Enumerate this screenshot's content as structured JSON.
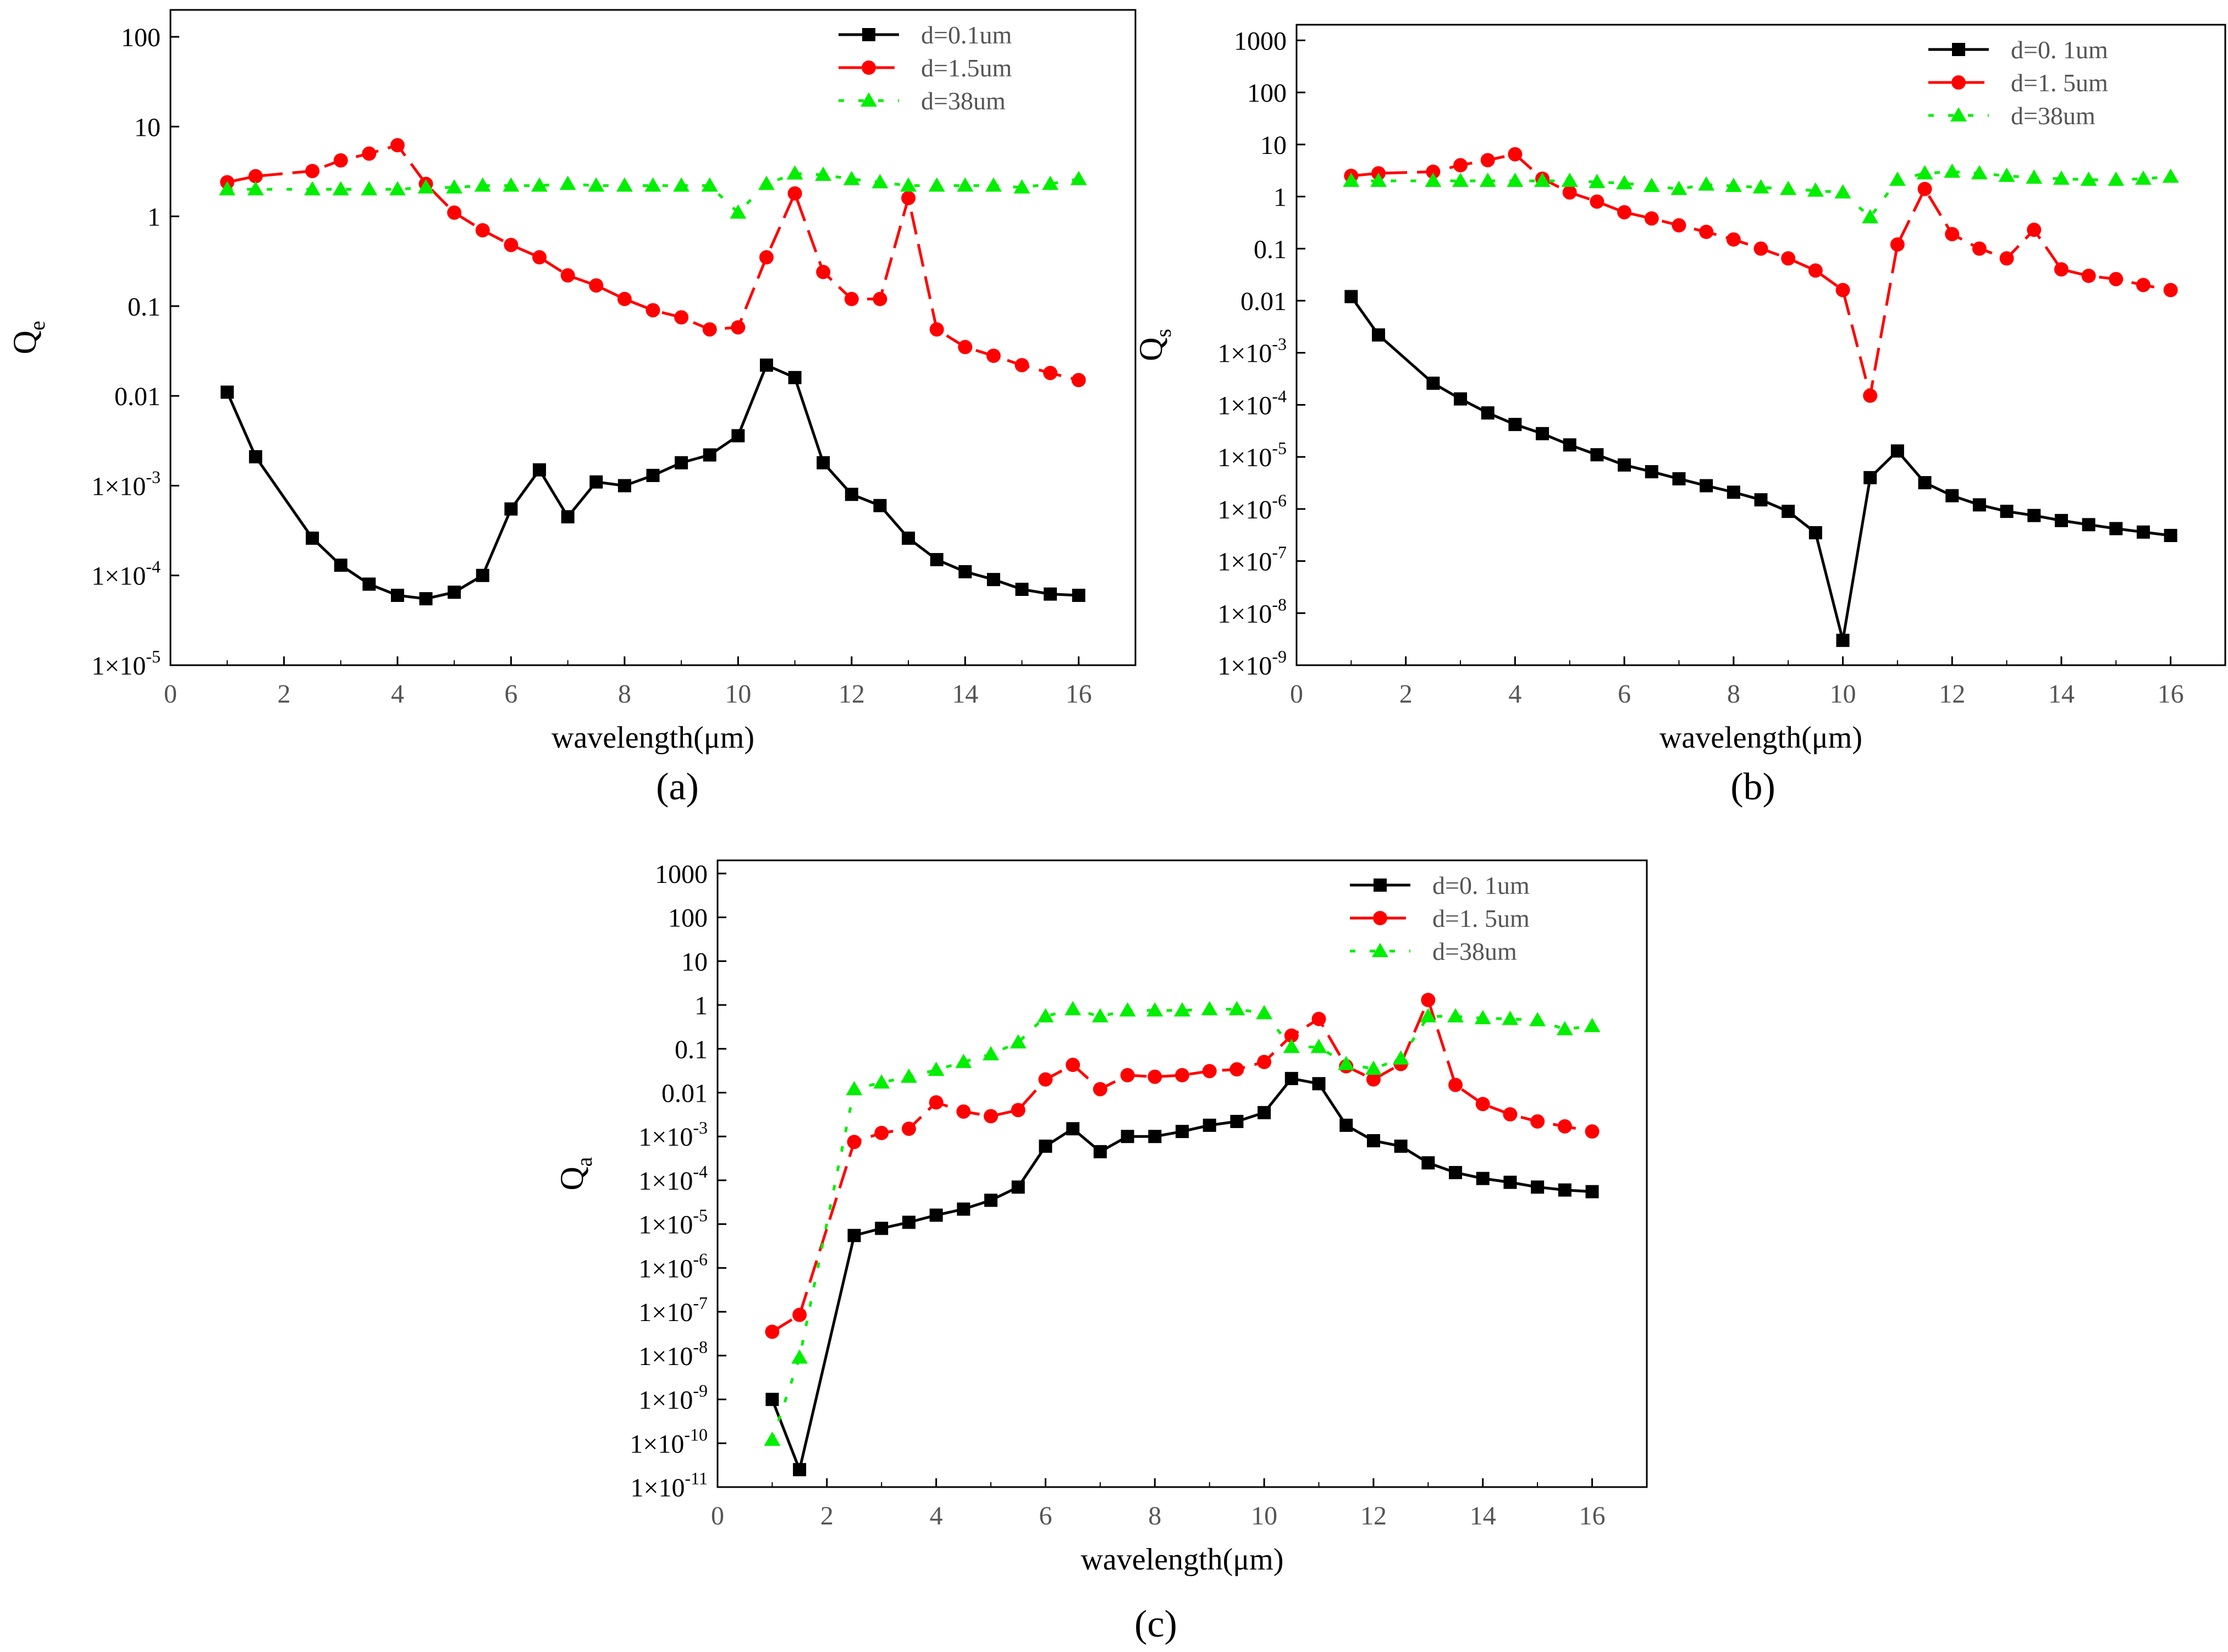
{
  "figure": {
    "captions": [
      "(a)",
      "(b)",
      "(c)"
    ]
  },
  "colors": {
    "axis": "#000000",
    "series": [
      "#000000",
      "#ff0000",
      "#00ee00"
    ]
  },
  "chart_data": [
    {
      "id": "a",
      "type": "line",
      "yscale": "log",
      "xlabel": "wavelength(μm)",
      "ylabel": "Q",
      "ylabel_sub": "e",
      "xlim": [
        0,
        17
      ],
      "ylim_exp": [
        -5,
        2.3
      ],
      "xticks": [
        "0",
        "2",
        "4",
        "6",
        "8",
        "10",
        "12",
        "14",
        "16"
      ],
      "yticks": [
        {
          "exp": 2,
          "label": "100"
        },
        {
          "exp": 1,
          "label": "10"
        },
        {
          "exp": 0,
          "label": "1"
        },
        {
          "exp": -1,
          "label": "0.1"
        },
        {
          "exp": -2,
          "label": "0.01"
        },
        {
          "exp": -3,
          "label": "1×10",
          "sup": "-3"
        },
        {
          "exp": -4,
          "label": "1×10",
          "sup": "-4"
        },
        {
          "exp": -5,
          "label": "1×10",
          "sup": "-5"
        }
      ],
      "legend": [
        "d=0.1um",
        "d=1.5um",
        "d=38um"
      ],
      "series": [
        {
          "name": "d=0.1um",
          "marker": "square",
          "x": [
            1,
            1.5,
            2.5,
            3,
            3.5,
            4,
            4.5,
            5,
            5.5,
            6,
            6.5,
            7,
            7.5,
            8,
            8.5,
            9,
            9.5,
            10,
            10.5,
            11,
            11.5,
            12,
            12.5,
            13,
            13.5,
            14,
            14.5,
            15,
            15.5,
            16
          ],
          "y": [
            0.011,
            0.0021,
            0.00026,
            0.00013,
            8e-05,
            6e-05,
            5.5e-05,
            6.5e-05,
            0.0001,
            0.00055,
            0.0015,
            0.00045,
            0.0011,
            0.001,
            0.0013,
            0.0018,
            0.0022,
            0.0036,
            0.022,
            0.016,
            0.0018,
            0.0008,
            0.0006,
            0.00026,
            0.00015,
            0.00011,
            9e-05,
            7e-05,
            6.2e-05,
            6e-05
          ]
        },
        {
          "name": "d=1.5um",
          "marker": "circle",
          "x": [
            1,
            1.5,
            2.5,
            3,
            3.5,
            4,
            4.5,
            5,
            5.5,
            6,
            6.5,
            7,
            7.5,
            8,
            8.5,
            9,
            9.5,
            10,
            10.5,
            11,
            11.5,
            12,
            12.5,
            13,
            13.5,
            14,
            14.5,
            15,
            15.5,
            16
          ],
          "y": [
            2.4,
            2.8,
            3.2,
            4.2,
            5,
            6.2,
            2.3,
            1.1,
            0.7,
            0.48,
            0.35,
            0.22,
            0.17,
            0.12,
            0.09,
            0.075,
            0.055,
            0.058,
            0.35,
            1.8,
            0.24,
            0.12,
            0.12,
            1.6,
            0.055,
            0.035,
            0.028,
            0.022,
            0.018,
            0.015
          ]
        },
        {
          "name": "d=38um",
          "marker": "triangle",
          "x": [
            1,
            1.5,
            2.5,
            3,
            3.5,
            4,
            4.5,
            5,
            5.5,
            6,
            6.5,
            7,
            7.5,
            8,
            8.5,
            9,
            9.5,
            10,
            10.5,
            11,
            11.5,
            12,
            12.5,
            13,
            13.5,
            14,
            14.5,
            15,
            15.5,
            16
          ],
          "y": [
            2,
            2,
            2,
            2,
            2,
            2,
            2.1,
            2.1,
            2.2,
            2.2,
            2.2,
            2.3,
            2.2,
            2.2,
            2.2,
            2.2,
            2.2,
            1.1,
            2.3,
            3,
            2.9,
            2.6,
            2.4,
            2.2,
            2.2,
            2.2,
            2.2,
            2.1,
            2.3,
            2.6
          ]
        }
      ]
    },
    {
      "id": "b",
      "type": "line",
      "yscale": "log",
      "xlabel": "wavelength(μm)",
      "ylabel": "Q",
      "ylabel_sub": "s",
      "xlim": [
        0,
        17
      ],
      "ylim_exp": [
        -9,
        3.3
      ],
      "xticks": [
        "0",
        "2",
        "4",
        "6",
        "8",
        "10",
        "12",
        "14",
        "16"
      ],
      "yticks": [
        {
          "exp": 3,
          "label": "1000"
        },
        {
          "exp": 2,
          "label": "100"
        },
        {
          "exp": 1,
          "label": "10"
        },
        {
          "exp": 0,
          "label": "1"
        },
        {
          "exp": -1,
          "label": "0.1"
        },
        {
          "exp": -2,
          "label": "0.01"
        },
        {
          "exp": -3,
          "label": "1×10",
          "sup": "-3"
        },
        {
          "exp": -4,
          "label": "1×10",
          "sup": "-4"
        },
        {
          "exp": -5,
          "label": "1×10",
          "sup": "-5"
        },
        {
          "exp": -6,
          "label": "1×10",
          "sup": "-6"
        },
        {
          "exp": -7,
          "label": "1×10",
          "sup": "-7"
        },
        {
          "exp": -8,
          "label": "1×10",
          "sup": "-8"
        },
        {
          "exp": -9,
          "label": "1×10",
          "sup": "-9"
        }
      ],
      "legend": [
        "d=0. 1um",
        "d=1. 5um",
        "d=38um"
      ],
      "series": [
        {
          "name": "d=0. 1um",
          "marker": "square",
          "x": [
            1,
            1.5,
            2.5,
            3,
            3.5,
            4,
            4.5,
            5,
            5.5,
            6,
            6.5,
            7,
            7.5,
            8,
            8.5,
            9,
            9.5,
            10,
            10.5,
            11,
            11.5,
            12,
            12.5,
            13,
            13.5,
            14,
            14.5,
            15,
            15.5,
            16
          ],
          "y": [
            0.012,
            0.0022,
            0.00026,
            0.00013,
            7e-05,
            4.2e-05,
            2.8e-05,
            1.7e-05,
            1.1e-05,
            7e-06,
            5.2e-06,
            3.8e-06,
            2.8e-06,
            2.1e-06,
            1.5e-06,
            9e-07,
            3.5e-07,
            3e-09,
            4e-06,
            1.3e-05,
            3.2e-06,
            1.8e-06,
            1.2e-06,
            9e-07,
            7.5e-07,
            6e-07,
            5e-07,
            4.2e-07,
            3.6e-07,
            3.1e-07
          ]
        },
        {
          "name": "d=1. 5um",
          "marker": "circle",
          "x": [
            1,
            1.5,
            2.5,
            3,
            3.5,
            4,
            4.5,
            5,
            5.5,
            6,
            6.5,
            7,
            7.5,
            8,
            8.5,
            9,
            9.5,
            10,
            10.5,
            11,
            11.5,
            12,
            12.5,
            13,
            13.5,
            14,
            14.5,
            15,
            15.5,
            16
          ],
          "y": [
            2.5,
            2.8,
            3,
            4,
            5,
            6.5,
            2.2,
            1.2,
            0.8,
            0.5,
            0.38,
            0.28,
            0.21,
            0.15,
            0.1,
            0.065,
            0.038,
            0.016,
            0.00015,
            0.12,
            1.4,
            0.19,
            0.1,
            0.065,
            0.23,
            0.04,
            0.03,
            0.026,
            0.02,
            0.016
          ]
        },
        {
          "name": "d=38um",
          "marker": "triangle",
          "x": [
            1,
            1.5,
            2.5,
            3,
            3.5,
            4,
            4.5,
            5,
            5.5,
            6,
            6.5,
            7,
            7.5,
            8,
            8.5,
            9,
            9.5,
            10,
            10.5,
            11,
            11.5,
            12,
            12.5,
            13,
            13.5,
            14,
            14.5,
            15,
            15.5,
            16
          ],
          "y": [
            2,
            2,
            2,
            2,
            2,
            2,
            2,
            2,
            1.9,
            1.8,
            1.6,
            1.4,
            1.7,
            1.6,
            1.5,
            1.4,
            1.3,
            1.2,
            0.4,
            2.1,
            2.8,
            3,
            2.8,
            2.5,
            2.3,
            2.2,
            2.1,
            2.1,
            2.2,
            2.4
          ]
        }
      ]
    },
    {
      "id": "c",
      "type": "line",
      "yscale": "log",
      "xlabel": "wavelength(μm)",
      "ylabel": "Q",
      "ylabel_sub": "a",
      "xlim": [
        0,
        17
      ],
      "ylim_exp": [
        -11,
        3.3
      ],
      "xticks": [
        "0",
        "2",
        "4",
        "6",
        "8",
        "10",
        "12",
        "14",
        "16"
      ],
      "yticks": [
        {
          "exp": 3,
          "label": "1000"
        },
        {
          "exp": 2,
          "label": "100"
        },
        {
          "exp": 1,
          "label": "10"
        },
        {
          "exp": 0,
          "label": "1"
        },
        {
          "exp": -1,
          "label": "0.1"
        },
        {
          "exp": -2,
          "label": "0.01"
        },
        {
          "exp": -3,
          "label": "1×10",
          "sup": "-3"
        },
        {
          "exp": -4,
          "label": "1×10",
          "sup": "-4"
        },
        {
          "exp": -5,
          "label": "1×10",
          "sup": "-5"
        },
        {
          "exp": -6,
          "label": "1×10",
          "sup": "-6"
        },
        {
          "exp": -7,
          "label": "1×10",
          "sup": "-7"
        },
        {
          "exp": -8,
          "label": "1×10",
          "sup": "-8"
        },
        {
          "exp": -9,
          "label": "1×10",
          "sup": "-9"
        },
        {
          "exp": -10,
          "label": "1×10",
          "sup": "-10"
        },
        {
          "exp": -11,
          "label": "1×10",
          "sup": "-11"
        }
      ],
      "legend": [
        "d=0. 1um",
        "d=1. 5um",
        "d=38um"
      ],
      "series": [
        {
          "name": "d=0. 1um",
          "marker": "square",
          "x": [
            1,
            1.5,
            2.5,
            3,
            3.5,
            4,
            4.5,
            5,
            5.5,
            6,
            6.5,
            7,
            7.5,
            8,
            8.5,
            9,
            9.5,
            10,
            10.5,
            11,
            11.5,
            12,
            12.5,
            13,
            13.5,
            14,
            14.5,
            15,
            15.5,
            16
          ],
          "y": [
            1e-09,
            2.5e-11,
            5.5e-06,
            8e-06,
            1.1e-05,
            1.6e-05,
            2.2e-05,
            3.5e-05,
            7e-05,
            0.0006,
            0.0015,
            0.00045,
            0.001,
            0.001,
            0.0013,
            0.0018,
            0.0022,
            0.0035,
            0.021,
            0.016,
            0.0018,
            0.0008,
            0.0006,
            0.00025,
            0.00015,
            0.00011,
            9e-05,
            7e-05,
            6e-05,
            5.5e-05
          ]
        },
        {
          "name": "d=1. 5um",
          "marker": "circle",
          "x": [
            1,
            1.5,
            2.5,
            3,
            3.5,
            4,
            4.5,
            5,
            5.5,
            6,
            6.5,
            7,
            7.5,
            8,
            8.5,
            9,
            9.5,
            10,
            10.5,
            11,
            11.5,
            12,
            12.5,
            13,
            13.5,
            14,
            14.5,
            15,
            15.5,
            16
          ],
          "y": [
            3.5e-08,
            8.5e-08,
            0.00075,
            0.0012,
            0.0015,
            0.006,
            0.0037,
            0.0029,
            0.004,
            0.02,
            0.043,
            0.012,
            0.025,
            0.023,
            0.025,
            0.031,
            0.034,
            0.05,
            0.2,
            0.48,
            0.04,
            0.02,
            0.045,
            1.3,
            0.015,
            0.0055,
            0.0032,
            0.0022,
            0.0017,
            0.0013
          ]
        },
        {
          "name": "d=38um",
          "marker": "triangle",
          "x": [
            1,
            1.5,
            2.5,
            3,
            3.5,
            4,
            4.5,
            5,
            5.5,
            6,
            6.5,
            7,
            7.5,
            8,
            8.5,
            9,
            9.5,
            10,
            10.5,
            11,
            11.5,
            12,
            12.5,
            13,
            13.5,
            14,
            14.5,
            15,
            15.5,
            16
          ],
          "y": [
            1.2e-10,
            9e-09,
            0.012,
            0.017,
            0.023,
            0.033,
            0.05,
            0.075,
            0.14,
            0.55,
            0.8,
            0.55,
            0.75,
            0.75,
            0.75,
            0.8,
            0.8,
            0.65,
            0.11,
            0.11,
            0.045,
            0.035,
            0.06,
            0.55,
            0.55,
            0.5,
            0.48,
            0.45,
            0.28,
            0.33
          ]
        }
      ]
    }
  ]
}
